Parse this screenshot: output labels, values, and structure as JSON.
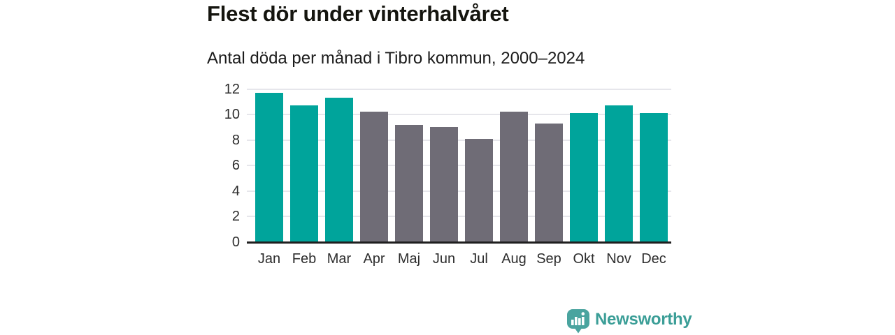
{
  "header": {
    "title": "Flest dör under vinterhalvåret",
    "subtitle": "Antal döda per månad i Tibro kommun, 2000–2024"
  },
  "chart_data": {
    "type": "bar",
    "title": "Flest dör under vinterhalvåret",
    "subtitle": "Antal döda per månad i Tibro kommun, 2000–2024",
    "categories": [
      "Jan",
      "Feb",
      "Mar",
      "Apr",
      "Maj",
      "Jun",
      "Jul",
      "Aug",
      "Sep",
      "Okt",
      "Nov",
      "Dec"
    ],
    "values": [
      11.7,
      10.7,
      11.3,
      10.2,
      9.2,
      9.0,
      8.1,
      10.2,
      9.3,
      10.1,
      10.7,
      10.1
    ],
    "bar_colors": [
      "teal",
      "teal",
      "teal",
      "gray",
      "gray",
      "gray",
      "gray",
      "gray",
      "gray",
      "teal",
      "teal",
      "teal"
    ],
    "xlabel": "",
    "ylabel": "",
    "ylim": [
      0,
      12
    ],
    "yticks": [
      0,
      2,
      4,
      6,
      8,
      10,
      12
    ],
    "grid": true,
    "legend": false
  },
  "colors": {
    "winter_bar": "#00a49b",
    "summer_bar": "#6f6c76",
    "grid": "#e6e6eb",
    "axis": "#1f1f1f",
    "tick_text": "#2d2d2d",
    "brand": "#3b9e97",
    "logo": "#4aa49f"
  },
  "footer": {
    "brand": "Newsworthy",
    "logo_icon": "speech-bubble-bar-chart-icon"
  }
}
